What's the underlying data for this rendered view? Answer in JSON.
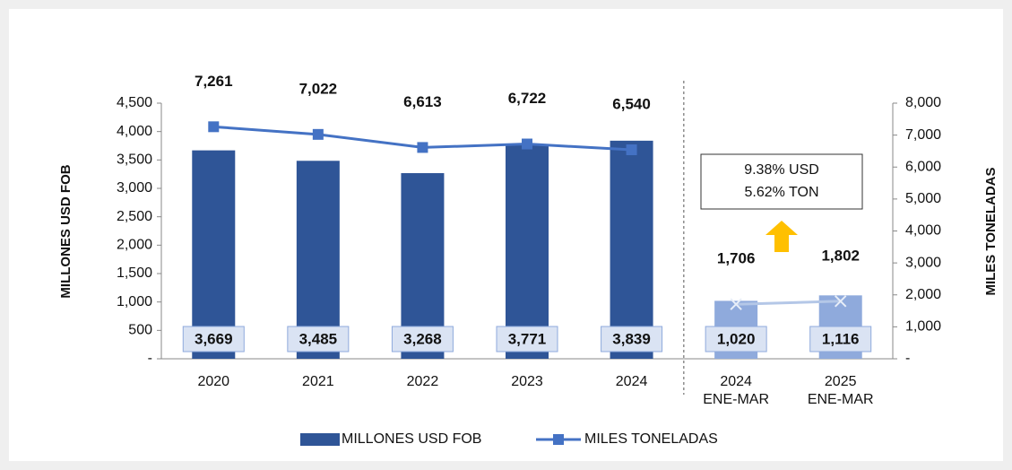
{
  "chart_data": {
    "type": "bar_line",
    "categories": [
      "2020",
      "2021",
      "2022",
      "2023",
      "2024",
      "2024\nENE-MAR",
      "2025\nENE-MAR"
    ],
    "series": [
      {
        "name": "MILLONES USD FOB",
        "type": "bar",
        "color": "#2f5597",
        "colors": [
          "#2f5597",
          "#2f5597",
          "#2f5597",
          "#2f5597",
          "#2f5597",
          "#8faadc",
          "#8faadc"
        ],
        "values": [
          3669,
          3485,
          3268,
          3771,
          3839,
          1020,
          1116
        ],
        "value_labels": [
          "3,669",
          "3,485",
          "3,268",
          "3,771",
          "3,839",
          "1,020",
          "1,116"
        ]
      },
      {
        "name": "MILES TONELADAS",
        "type": "line",
        "axis": "y2",
        "color": "#4472c4",
        "colors": [
          "#4472c4",
          "#4472c4",
          "#4472c4",
          "#4472c4",
          "#4472c4",
          "#b4c7e7",
          "#b4c7e7"
        ],
        "values": [
          7261,
          7022,
          6613,
          6722,
          6540,
          1706,
          1802
        ],
        "value_labels": [
          "7,261",
          "7,022",
          "6,613",
          "6,722",
          "6,540",
          "1,706",
          "1,802"
        ]
      }
    ],
    "ylabel": "MILLONES USD FOB",
    "y2label": "MILES TONELADAS",
    "ylim": [
      0,
      4500
    ],
    "yticks": [
      {
        "value": 0,
        "label": "-"
      },
      500,
      {
        "value": 1000,
        "label": "1,000"
      },
      {
        "value": 1500,
        "label": "1,500"
      },
      {
        "value": 2000,
        "label": "2,000"
      },
      {
        "value": 2500,
        "label": "2,500"
      },
      {
        "value": 3000,
        "label": "3,000"
      },
      {
        "value": 3500,
        "label": "3,500"
      },
      {
        "value": 4000,
        "label": "4,000"
      },
      {
        "value": 4500,
        "label": "4,500"
      }
    ],
    "y2lim": [
      0,
      8000
    ],
    "y2ticks": [
      {
        "value": 0,
        "label": "-"
      },
      {
        "value": 1000,
        "label": "1,000"
      },
      {
        "value": 2000,
        "label": "2,000"
      },
      {
        "value": 3000,
        "label": "3,000"
      },
      {
        "value": 4000,
        "label": "4,000"
      },
      {
        "value": 5000,
        "label": "5,000"
      },
      {
        "value": 6000,
        "label": "6,000"
      },
      {
        "value": 7000,
        "label": "7,000"
      },
      {
        "value": 8000,
        "label": "8,000"
      }
    ],
    "divider_after_category": 4,
    "annotations": [
      "9.38% USD",
      "5.62% TON"
    ],
    "legend": "bottom"
  }
}
